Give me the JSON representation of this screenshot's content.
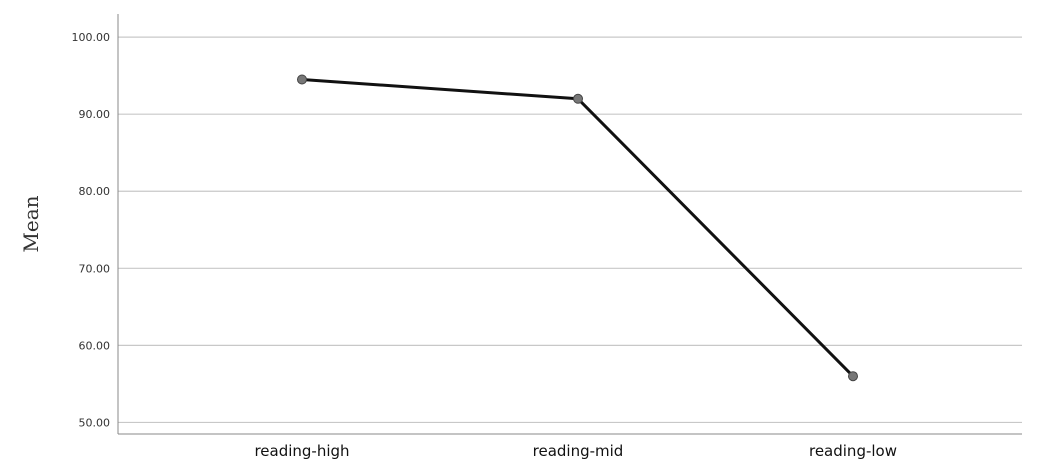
{
  "chart_data": {
    "type": "line",
    "title": "",
    "xlabel": "",
    "ylabel": "Mean",
    "categories": [
      "reading-high",
      "reading-mid",
      "reading-low"
    ],
    "series": [
      {
        "values": [
          94.5,
          92.0,
          56.0
        ],
        "color": "#111111"
      }
    ],
    "ylim": [
      48.5,
      103
    ],
    "yticks": [
      50,
      60,
      70,
      80,
      90,
      100
    ],
    "ytick_labels": [
      "50.00",
      "60.00",
      "70.00",
      "80.00",
      "90.00",
      "100.00"
    ],
    "grid": true,
    "legend": "none",
    "marker_color": "#777777",
    "grid_color": "#c8c8c8"
  }
}
